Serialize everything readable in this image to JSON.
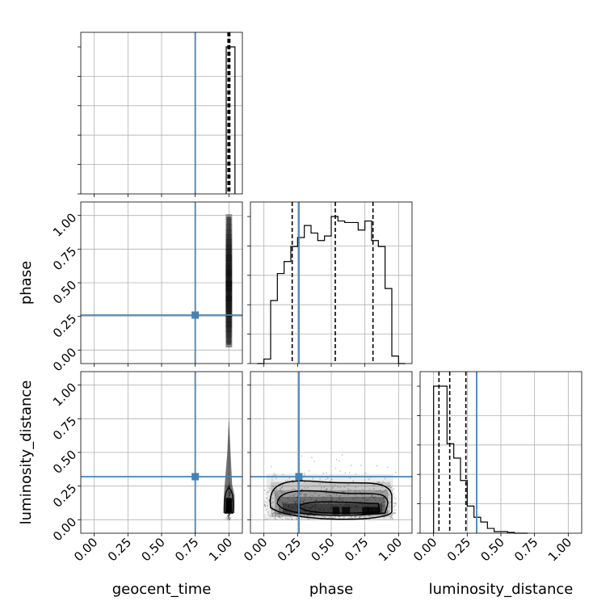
{
  "chart_data": {
    "type": "corner",
    "parameters": [
      "geocent_time",
      "phase",
      "luminosity_distance"
    ],
    "axis_range": [
      -0.1,
      1.1
    ],
    "tick_values": [
      0.0,
      0.25,
      0.5,
      0.75,
      1.0
    ],
    "tick_labels": [
      "0.00",
      "0.25",
      "0.50",
      "0.75",
      "1.00"
    ],
    "grid": true,
    "truth_color": "#4682b4",
    "truths": {
      "geocent_time": 0.75,
      "phase": 0.26,
      "luminosity_distance": 0.32
    },
    "histograms": {
      "geocent_time": {
        "bin_edges": [
          0.98,
          1.045
        ],
        "counts": [
          1.0
        ],
        "quantiles": [
          0.993,
          1.0,
          1.007
        ]
      },
      "phase": {
        "bin_edges": [
          -0.05,
          0.0,
          0.05,
          0.1,
          0.15,
          0.2,
          0.25,
          0.3,
          0.35,
          0.4,
          0.45,
          0.5,
          0.55,
          0.6,
          0.65,
          0.7,
          0.75,
          0.8,
          0.85,
          0.9,
          0.95,
          1.0,
          1.05
        ],
        "counts": [
          0.0,
          0.03,
          0.42,
          0.6,
          0.68,
          0.78,
          0.84,
          0.92,
          0.87,
          0.82,
          0.85,
          0.98,
          0.95,
          0.94,
          0.94,
          0.89,
          0.95,
          0.82,
          0.78,
          0.5,
          0.05,
          0.0
        ],
        "quantiles": [
          0.21,
          0.53,
          0.81
        ]
      },
      "luminosity_distance": {
        "bin_edges": [
          0.0,
          0.05,
          0.1,
          0.15,
          0.2,
          0.25,
          0.3,
          0.35,
          0.4,
          0.45,
          0.5,
          0.55,
          0.6,
          0.65,
          0.7
        ],
        "counts": [
          0.92,
          0.92,
          0.56,
          0.47,
          0.33,
          0.17,
          0.1,
          0.07,
          0.03,
          0.01,
          0.01,
          0.005,
          0.0,
          0.0
        ],
        "quantiles": [
          0.04,
          0.12,
          0.24
        ]
      }
    }
  }
}
